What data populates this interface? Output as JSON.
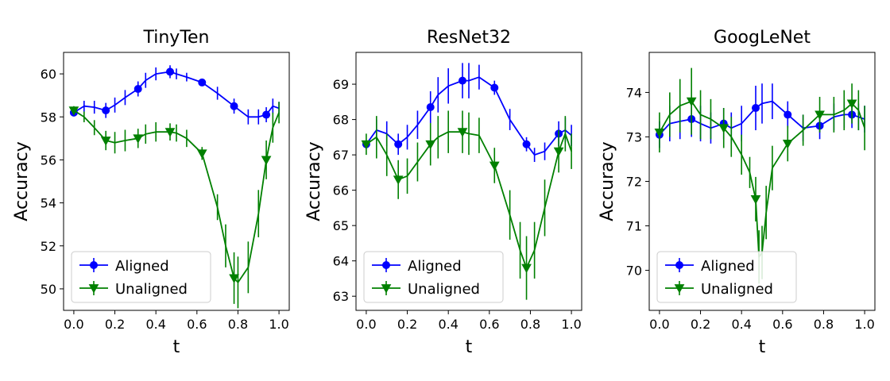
{
  "chart_data": [
    {
      "type": "line",
      "title": "TinyTen",
      "xlabel": "t",
      "ylabel": "Accuracy",
      "xlim": [
        -0.05,
        1.05
      ],
      "ylim": [
        49,
        61
      ],
      "xticks": [
        "0.0",
        "0.2",
        "0.4",
        "0.6",
        "0.8",
        "1.0"
      ],
      "yticks": [
        "50",
        "52",
        "54",
        "56",
        "58",
        "60"
      ],
      "legend_position": "lower-left",
      "series": [
        {
          "name": "Aligned",
          "color": "#0000ff",
          "marker": "circle",
          "x": [
            0.0,
            0.05,
            0.1,
            0.156,
            0.2,
            0.25,
            0.313,
            0.35,
            0.4,
            0.469,
            0.5,
            0.55,
            0.625,
            0.7,
            0.781,
            0.85,
            0.9,
            0.938,
            0.97,
            1.0
          ],
          "y": [
            58.2,
            58.5,
            58.45,
            58.3,
            58.55,
            58.9,
            59.3,
            59.7,
            60.0,
            60.1,
            60.0,
            59.85,
            59.6,
            59.1,
            58.5,
            58.0,
            58.0,
            58.1,
            58.5,
            58.4
          ],
          "err": [
            0.15,
            0.25,
            0.3,
            0.35,
            0.35,
            0.35,
            0.35,
            0.35,
            0.3,
            0.3,
            0.25,
            0.2,
            0.15,
            0.3,
            0.35,
            0.35,
            0.35,
            0.35,
            0.35,
            0.3
          ]
        },
        {
          "name": "Unaligned",
          "color": "#008000",
          "marker": "triangle-down",
          "x": [
            0.0,
            0.05,
            0.1,
            0.156,
            0.2,
            0.25,
            0.313,
            0.35,
            0.4,
            0.469,
            0.5,
            0.55,
            0.625,
            0.7,
            0.74,
            0.781,
            0.8,
            0.85,
            0.9,
            0.938,
            0.97,
            1.0
          ],
          "y": [
            58.3,
            58.0,
            57.5,
            56.9,
            56.8,
            56.9,
            57.0,
            57.2,
            57.3,
            57.3,
            57.25,
            57.0,
            56.3,
            53.8,
            52.0,
            50.5,
            50.3,
            51.0,
            53.5,
            56.0,
            57.5,
            58.2
          ],
          "err": [
            0.2,
            0.25,
            0.35,
            0.45,
            0.5,
            0.5,
            0.45,
            0.45,
            0.45,
            0.4,
            0.4,
            0.4,
            0.3,
            0.6,
            1.0,
            1.2,
            1.2,
            1.2,
            1.1,
            0.9,
            0.7,
            0.5
          ]
        }
      ]
    },
    {
      "type": "line",
      "title": "ResNet32",
      "xlabel": "t",
      "ylabel": "Accuracy",
      "xlim": [
        -0.05,
        1.05
      ],
      "ylim": [
        62.6,
        69.9
      ],
      "xticks": [
        "0.0",
        "0.2",
        "0.4",
        "0.6",
        "0.8",
        "1.0"
      ],
      "yticks": [
        "63",
        "64",
        "65",
        "66",
        "67",
        "68",
        "69"
      ],
      "legend_position": "lower-left",
      "series": [
        {
          "name": "Aligned",
          "color": "#0000ff",
          "marker": "circle",
          "x": [
            0.0,
            0.05,
            0.1,
            0.156,
            0.2,
            0.25,
            0.313,
            0.35,
            0.4,
            0.469,
            0.5,
            0.55,
            0.625,
            0.7,
            0.781,
            0.82,
            0.87,
            0.938,
            0.97,
            1.0
          ],
          "y": [
            67.3,
            67.7,
            67.6,
            67.3,
            67.5,
            67.85,
            68.35,
            68.7,
            68.95,
            69.1,
            69.1,
            69.2,
            68.9,
            68.0,
            67.3,
            67.0,
            67.1,
            67.6,
            67.7,
            67.55
          ],
          "err": [
            0.1,
            0.3,
            0.35,
            0.3,
            0.35,
            0.4,
            0.45,
            0.5,
            0.5,
            0.5,
            0.5,
            0.35,
            0.2,
            0.3,
            0.2,
            0.2,
            0.25,
            0.35,
            0.35,
            0.3
          ]
        },
        {
          "name": "Unaligned",
          "color": "#008000",
          "marker": "triangle-down",
          "x": [
            0.0,
            0.05,
            0.1,
            0.156,
            0.2,
            0.25,
            0.313,
            0.35,
            0.4,
            0.469,
            0.5,
            0.55,
            0.625,
            0.7,
            0.75,
            0.781,
            0.82,
            0.87,
            0.938,
            0.97,
            1.0
          ],
          "y": [
            67.3,
            67.5,
            67.0,
            66.3,
            66.4,
            66.8,
            67.3,
            67.5,
            67.65,
            67.65,
            67.6,
            67.55,
            66.7,
            65.3,
            64.3,
            63.8,
            64.3,
            65.5,
            67.1,
            67.6,
            67.1
          ],
          "err": [
            0.3,
            0.6,
            0.6,
            0.55,
            0.5,
            0.55,
            0.6,
            0.6,
            0.6,
            0.6,
            0.6,
            0.5,
            0.5,
            0.7,
            0.8,
            0.9,
            0.8,
            0.8,
            0.6,
            0.5,
            0.5
          ]
        }
      ]
    },
    {
      "type": "line",
      "title": "GoogLeNet",
      "xlabel": "t",
      "ylabel": "Accuracy",
      "xlim": [
        -0.05,
        1.05
      ],
      "ylim": [
        69.1,
        74.9
      ],
      "xticks": [
        "0.0",
        "0.2",
        "0.4",
        "0.6",
        "0.8",
        "1.0"
      ],
      "yticks": [
        "70",
        "71",
        "72",
        "73",
        "74"
      ],
      "legend_position": "lower-left",
      "series": [
        {
          "name": "Aligned",
          "color": "#0000ff",
          "marker": "circle",
          "x": [
            0.0,
            0.05,
            0.1,
            0.156,
            0.2,
            0.25,
            0.313,
            0.35,
            0.4,
            0.469,
            0.5,
            0.55,
            0.625,
            0.7,
            0.781,
            0.85,
            0.9,
            0.938,
            0.97,
            1.0
          ],
          "y": [
            73.05,
            73.3,
            73.35,
            73.4,
            73.3,
            73.2,
            73.3,
            73.2,
            73.3,
            73.65,
            73.75,
            73.8,
            73.5,
            73.2,
            73.25,
            73.45,
            73.5,
            73.5,
            73.45,
            73.4
          ],
          "err": [
            0.3,
            0.4,
            0.4,
            0.4,
            0.4,
            0.35,
            0.35,
            0.35,
            0.4,
            0.5,
            0.45,
            0.4,
            0.3,
            0.3,
            0.3,
            0.3,
            0.3,
            0.3,
            0.3,
            0.3
          ]
        },
        {
          "name": "Unaligned",
          "color": "#008000",
          "marker": "triangle-down",
          "x": [
            0.0,
            0.05,
            0.1,
            0.156,
            0.2,
            0.25,
            0.313,
            0.35,
            0.4,
            0.44,
            0.469,
            0.485,
            0.5,
            0.52,
            0.55,
            0.625,
            0.7,
            0.781,
            0.85,
            0.9,
            0.938,
            0.97,
            1.0
          ],
          "y": [
            73.1,
            73.5,
            73.7,
            73.8,
            73.5,
            73.4,
            73.2,
            73.0,
            72.6,
            72.2,
            71.6,
            70.3,
            70.4,
            71.3,
            72.3,
            72.85,
            73.15,
            73.5,
            73.5,
            73.6,
            73.75,
            73.6,
            73.2
          ],
          "err": [
            0.45,
            0.5,
            0.6,
            0.75,
            0.55,
            0.45,
            0.45,
            0.45,
            0.45,
            0.35,
            0.5,
            0.6,
            0.6,
            0.6,
            0.5,
            0.4,
            0.35,
            0.4,
            0.4,
            0.45,
            0.45,
            0.45,
            0.5
          ]
        }
      ]
    }
  ]
}
